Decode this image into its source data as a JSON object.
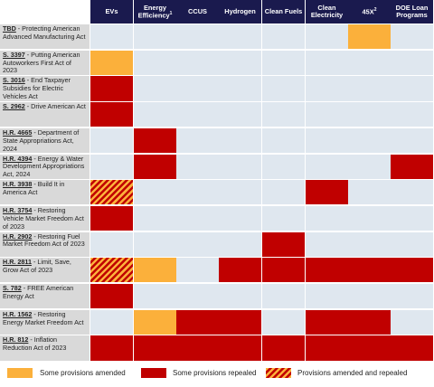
{
  "columns": [
    {
      "label": "EVs",
      "sup": ""
    },
    {
      "label": "Energy Efficiency",
      "sup": "1"
    },
    {
      "label": "CCUS",
      "sup": ""
    },
    {
      "label": "Hydrogen",
      "sup": ""
    },
    {
      "label": "Clean Fuels",
      "sup": ""
    },
    {
      "label": "Clean Electricity",
      "sup": ""
    },
    {
      "label": "45X",
      "sup": "2"
    },
    {
      "label": "DOE Loan Programs",
      "sup": ""
    }
  ],
  "rows": [
    {
      "bill": "TBD",
      "title": " - Protecting American Advanced Manufacturing Act",
      "status": [
        "none",
        "none",
        "none",
        "none",
        "none",
        "none",
        "amended",
        "none"
      ]
    },
    {
      "bill": "S. 3397",
      "title": " - Putting American Autoworkers First Act of 2023",
      "status": [
        "amended",
        "none",
        "none",
        "none",
        "none",
        "none",
        "none",
        "none"
      ]
    },
    {
      "bill": "S. 3016",
      "title": " - End Taxpayer Subsidies for Electric Vehicles Act",
      "status": [
        "repealed",
        "none",
        "none",
        "none",
        "none",
        "none",
        "none",
        "none"
      ]
    },
    {
      "bill": "S. 2962",
      "title": " - Drive American Act",
      "status": [
        "repealed",
        "none",
        "none",
        "none",
        "none",
        "none",
        "none",
        "none"
      ]
    },
    {
      "bill": "H.R. 4665",
      "title": " - Department of State Appropriations Act, 2024",
      "status": [
        "none",
        "repealed",
        "none",
        "none",
        "none",
        "none",
        "none",
        "none"
      ]
    },
    {
      "bill": "H.R. 4394",
      "title": " - Energy & Water Development Appropriations Act, 2024",
      "status": [
        "none",
        "repealed",
        "none",
        "none",
        "none",
        "none",
        "none",
        "repealed"
      ]
    },
    {
      "bill": "H.R. 3938",
      "title": " - Build It in America Act",
      "status": [
        "both",
        "none",
        "none",
        "none",
        "none",
        "repealed",
        "none",
        "none"
      ]
    },
    {
      "bill": "H.R. 3754",
      "title": " - Restoring Vehicle Market Freedom Act of 2023",
      "status": [
        "repealed",
        "none",
        "none",
        "none",
        "none",
        "none",
        "none",
        "none"
      ]
    },
    {
      "bill": "H.R. 2902",
      "title": " - Restoring Fuel Market Freedom Act of 2023",
      "status": [
        "none",
        "none",
        "none",
        "none",
        "repealed",
        "none",
        "none",
        "none"
      ]
    },
    {
      "bill": "H.R. 2811",
      "title": " - Limit, Save, Grow Act of 2023",
      "status": [
        "both",
        "amended",
        "none",
        "repealed",
        "repealed",
        "repealed",
        "repealed",
        "repealed"
      ]
    },
    {
      "bill": "S. 782",
      "title": " - FREE American Energy Act",
      "status": [
        "repealed",
        "none",
        "none",
        "none",
        "none",
        "none",
        "none",
        "none"
      ]
    },
    {
      "bill": "H.R. 1562",
      "title": " - Restoring Energy Market Freedom Act",
      "status": [
        "none",
        "amended",
        "repealed",
        "repealed",
        "none",
        "repealed",
        "repealed",
        "none"
      ]
    },
    {
      "bill": "H.R. 812",
      "title": " - Inflation Reduction Act of 2023",
      "status": [
        "repealed",
        "repealed",
        "repealed",
        "repealed",
        "repealed",
        "repealed",
        "repealed",
        "repealed"
      ]
    }
  ],
  "legend": {
    "amended": "Some provisions amended",
    "repealed": "Some provisions repealed",
    "both": "Provisions amended and repealed"
  },
  "colors": {
    "header": "#1a1a4e",
    "amended": "#fbb03b",
    "repealed": "#c00000",
    "none": "#dfe7ef",
    "label_bg": "#d9d9d9"
  }
}
